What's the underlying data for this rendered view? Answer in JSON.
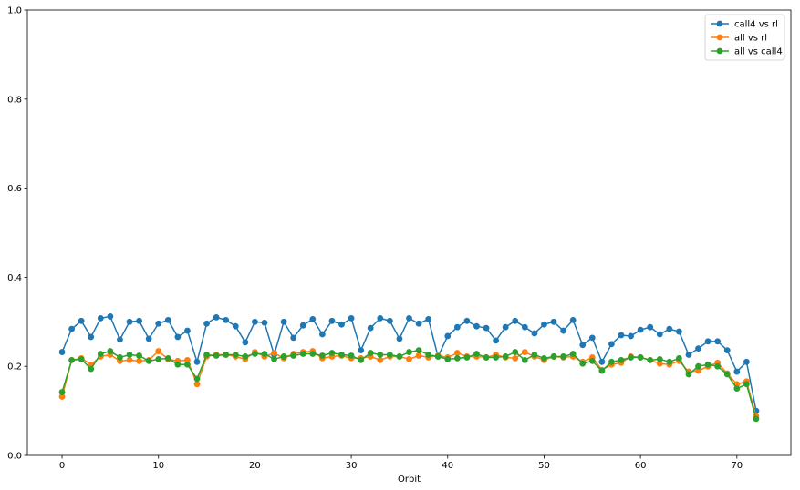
{
  "chart_data": {
    "type": "line",
    "title": "",
    "xlabel": "Orbit",
    "ylabel": "",
    "xlim": [
      -3.6,
      75.6
    ],
    "ylim": [
      0,
      1.0
    ],
    "xticks": [
      0,
      10,
      20,
      30,
      40,
      50,
      60,
      70
    ],
    "yticks": [
      0.0,
      0.2,
      0.4,
      0.6,
      0.8,
      1.0
    ],
    "ytick_labels": [
      "0.0",
      "0.2",
      "0.4",
      "0.6",
      "0.8",
      "1.0"
    ],
    "grid": false,
    "legend_position": "top-right",
    "x": [
      0,
      1,
      2,
      3,
      4,
      5,
      6,
      7,
      8,
      9,
      10,
      11,
      12,
      13,
      14,
      15,
      16,
      17,
      18,
      19,
      20,
      21,
      22,
      23,
      24,
      25,
      26,
      27,
      28,
      29,
      30,
      31,
      32,
      33,
      34,
      35,
      36,
      37,
      38,
      39,
      40,
      41,
      42,
      43,
      44,
      45,
      46,
      47,
      48,
      49,
      50,
      51,
      52,
      53,
      54,
      55,
      56,
      57,
      58,
      59,
      60,
      61,
      62,
      63,
      64,
      65,
      66,
      67,
      68,
      69,
      70,
      71,
      72
    ],
    "series": [
      {
        "name": "call4 vs rl",
        "color": "#1f77b4",
        "values": [
          0.232,
          0.284,
          0.302,
          0.266,
          0.308,
          0.312,
          0.26,
          0.3,
          0.302,
          0.262,
          0.296,
          0.304,
          0.266,
          0.28,
          0.21,
          0.296,
          0.31,
          0.304,
          0.29,
          0.254,
          0.3,
          0.298,
          0.226,
          0.3,
          0.264,
          0.292,
          0.306,
          0.272,
          0.302,
          0.294,
          0.308,
          0.236,
          0.286,
          0.308,
          0.302,
          0.262,
          0.308,
          0.296,
          0.306,
          0.222,
          0.268,
          0.288,
          0.302,
          0.29,
          0.286,
          0.258,
          0.288,
          0.302,
          0.288,
          0.274,
          0.294,
          0.3,
          0.28,
          0.304,
          0.248,
          0.264,
          0.21,
          0.25,
          0.27,
          0.268,
          0.282,
          0.288,
          0.272,
          0.284,
          0.278,
          0.226,
          0.24,
          0.256,
          0.256,
          0.236,
          0.188,
          0.21,
          0.1
        ]
      },
      {
        "name": "all vs rl",
        "color": "#ff7f0e",
        "values": [
          0.132,
          0.214,
          0.218,
          0.204,
          0.222,
          0.226,
          0.212,
          0.214,
          0.212,
          0.214,
          0.234,
          0.216,
          0.212,
          0.214,
          0.16,
          0.222,
          0.226,
          0.226,
          0.222,
          0.216,
          0.232,
          0.222,
          0.23,
          0.218,
          0.228,
          0.232,
          0.234,
          0.218,
          0.222,
          0.224,
          0.218,
          0.218,
          0.222,
          0.214,
          0.222,
          0.222,
          0.216,
          0.224,
          0.22,
          0.224,
          0.22,
          0.23,
          0.222,
          0.222,
          0.22,
          0.226,
          0.22,
          0.218,
          0.232,
          0.222,
          0.214,
          0.222,
          0.22,
          0.222,
          0.21,
          0.22,
          0.192,
          0.204,
          0.208,
          0.222,
          0.22,
          0.214,
          0.206,
          0.204,
          0.212,
          0.188,
          0.19,
          0.2,
          0.208,
          0.184,
          0.16,
          0.166,
          0.088
        ]
      },
      {
        "name": "all vs call4",
        "color": "#2ca02c",
        "values": [
          0.142,
          0.214,
          0.216,
          0.194,
          0.228,
          0.234,
          0.22,
          0.226,
          0.224,
          0.212,
          0.216,
          0.218,
          0.204,
          0.204,
          0.172,
          0.226,
          0.224,
          0.226,
          0.226,
          0.222,
          0.228,
          0.228,
          0.216,
          0.222,
          0.224,
          0.228,
          0.228,
          0.224,
          0.23,
          0.226,
          0.224,
          0.214,
          0.23,
          0.226,
          0.226,
          0.222,
          0.232,
          0.236,
          0.226,
          0.222,
          0.216,
          0.218,
          0.22,
          0.228,
          0.22,
          0.22,
          0.222,
          0.232,
          0.214,
          0.226,
          0.218,
          0.222,
          0.222,
          0.228,
          0.206,
          0.212,
          0.19,
          0.21,
          0.214,
          0.22,
          0.22,
          0.214,
          0.216,
          0.21,
          0.218,
          0.182,
          0.2,
          0.204,
          0.2,
          0.182,
          0.15,
          0.16,
          0.082
        ]
      }
    ]
  }
}
